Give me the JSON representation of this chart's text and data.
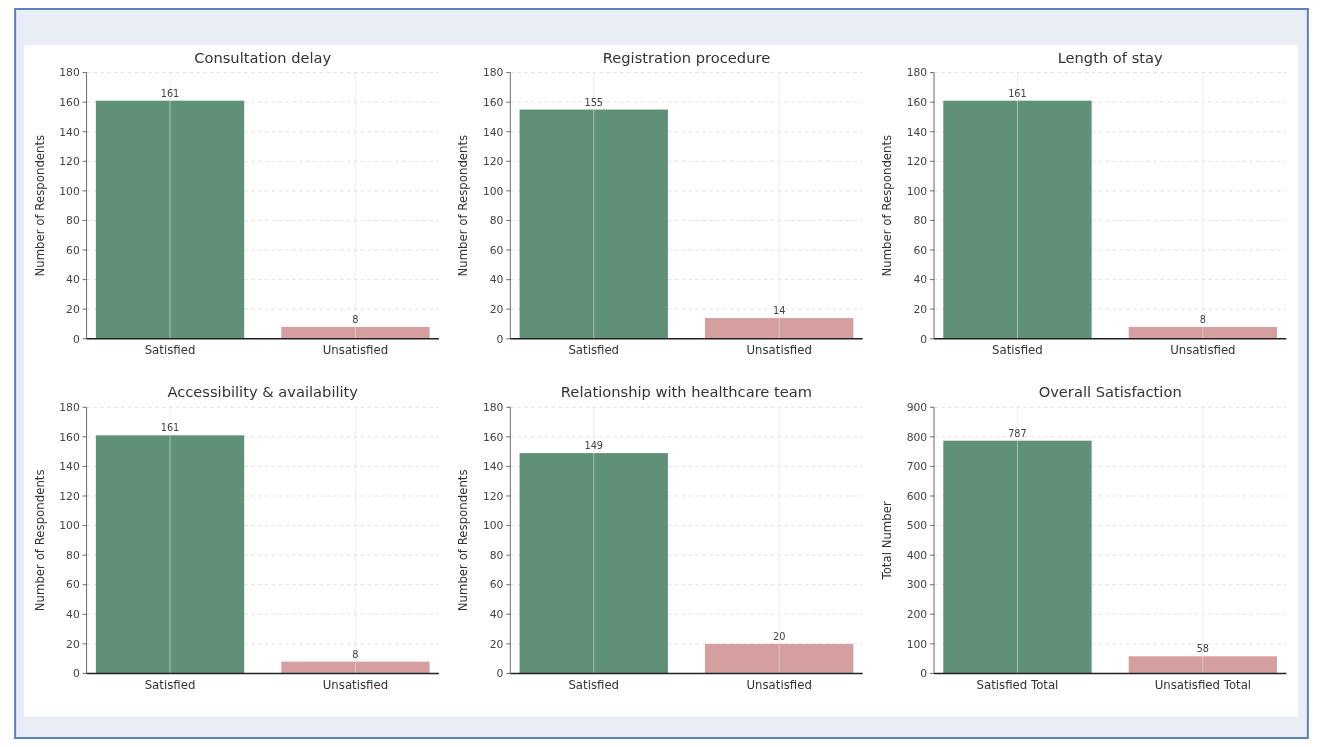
{
  "chart_data": [
    {
      "type": "bar",
      "title": "Consultation delay",
      "ylabel": "Number of Respondents",
      "categories": [
        "Satisfied",
        "Unsatisfied"
      ],
      "values": [
        161,
        8
      ],
      "colors": [
        "#558b6e",
        "#d49a9a"
      ],
      "ylim": [
        0,
        180
      ],
      "yticks": [
        0,
        20,
        40,
        60,
        80,
        100,
        120,
        140,
        160,
        180
      ],
      "grid": true,
      "data_labels": true
    },
    {
      "type": "bar",
      "title": "Registration procedure",
      "ylabel": "Number of Respondents",
      "categories": [
        "Satisfied",
        "Unsatisfied"
      ],
      "values": [
        155,
        14
      ],
      "colors": [
        "#558b6e",
        "#d49a9a"
      ],
      "ylim": [
        0,
        180
      ],
      "yticks": [
        0,
        20,
        40,
        60,
        80,
        100,
        120,
        140,
        160,
        180
      ],
      "grid": true,
      "data_labels": true
    },
    {
      "type": "bar",
      "title": "Length of stay",
      "ylabel": "Number of Respondents",
      "categories": [
        "Satisfied",
        "Unsatisfied"
      ],
      "values": [
        161,
        8
      ],
      "colors": [
        "#558b6e",
        "#d49a9a"
      ],
      "ylim": [
        0,
        180
      ],
      "yticks": [
        0,
        20,
        40,
        60,
        80,
        100,
        120,
        140,
        160,
        180
      ],
      "grid": true,
      "data_labels": true
    },
    {
      "type": "bar",
      "title": "Accessibility & availability",
      "ylabel": "Number of Respondents",
      "categories": [
        "Satisfied",
        "Unsatisfied"
      ],
      "values": [
        161,
        8
      ],
      "colors": [
        "#558b6e",
        "#d49a9a"
      ],
      "ylim": [
        0,
        180
      ],
      "yticks": [
        0,
        20,
        40,
        60,
        80,
        100,
        120,
        140,
        160,
        180
      ],
      "grid": true,
      "data_labels": true
    },
    {
      "type": "bar",
      "title": "Relationship with healthcare team",
      "ylabel": "Number of Respondents",
      "categories": [
        "Satisfied",
        "Unsatisfied"
      ],
      "values": [
        149,
        20
      ],
      "colors": [
        "#558b6e",
        "#d49a9a"
      ],
      "ylim": [
        0,
        180
      ],
      "yticks": [
        0,
        20,
        40,
        60,
        80,
        100,
        120,
        140,
        160,
        180
      ],
      "grid": true,
      "data_labels": true
    },
    {
      "type": "bar",
      "title": "Overall Satisfaction",
      "ylabel": "Total Number",
      "categories": [
        "Satisfied Total",
        "Unsatisfied Total"
      ],
      "values": [
        787,
        58
      ],
      "colors": [
        "#558b6e",
        "#d49a9a"
      ],
      "ylim": [
        0,
        900
      ],
      "yticks": [
        0,
        100,
        200,
        300,
        400,
        500,
        600,
        700,
        800,
        900
      ],
      "grid": true,
      "data_labels": true
    }
  ]
}
